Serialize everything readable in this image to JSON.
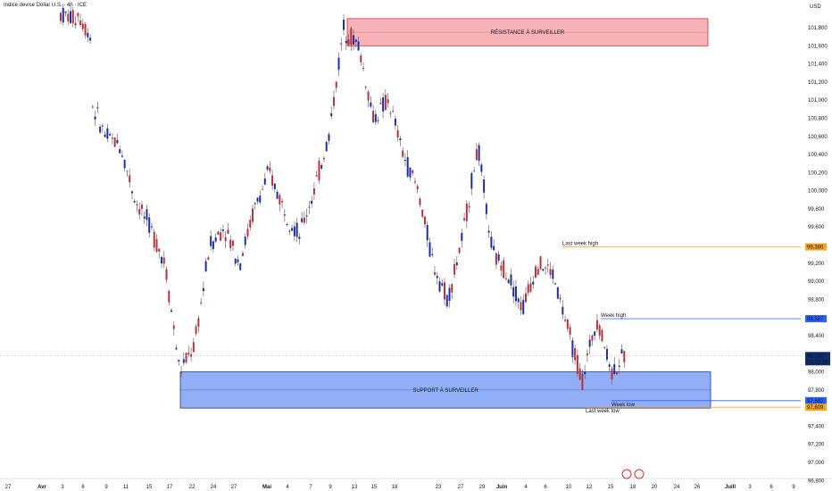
{
  "header": {
    "title": "Indice devise Dollar U.S. · 4h · ICE"
  },
  "chart_data": {
    "type": "candlestick",
    "title": "Indice devise Dollar U.S. · 4h · ICE",
    "currency_label": "USD",
    "ylim": [
      96800,
      102000
    ],
    "y_ticks": [
      {
        "v": 101800,
        "t": "101,800"
      },
      {
        "v": 101600,
        "t": "101,600"
      },
      {
        "v": 101400,
        "t": "101,400"
      },
      {
        "v": 101200,
        "t": "101,200"
      },
      {
        "v": 101000,
        "t": "101,000"
      },
      {
        "v": 100800,
        "t": "100,800"
      },
      {
        "v": 100600,
        "t": "100,600"
      },
      {
        "v": 100400,
        "t": "100,400"
      },
      {
        "v": 100200,
        "t": "100,200"
      },
      {
        "v": 100000,
        "t": "100,000"
      },
      {
        "v": 99800,
        "t": "99,800"
      },
      {
        "v": 99600,
        "t": "99,600"
      },
      {
        "v": 99200,
        "t": "99,200"
      },
      {
        "v": 99000,
        "t": "99,000"
      },
      {
        "v": 98800,
        "t": "98,800"
      },
      {
        "v": 98400,
        "t": "98,400"
      },
      {
        "v": 98000,
        "t": "98,000"
      },
      {
        "v": 97800,
        "t": "97,800"
      },
      {
        "v": 97400,
        "t": "97,400"
      },
      {
        "v": 97200,
        "t": "97,200"
      },
      {
        "v": 97000,
        "t": "97,000"
      },
      {
        "v": 96800,
        "t": "96,800"
      }
    ],
    "x_labels": [
      {
        "t": "27",
        "bold": false
      },
      {
        "t": "Avr",
        "bold": true
      },
      {
        "t": "3",
        "bold": false
      },
      {
        "t": "6",
        "bold": false
      },
      {
        "t": "9",
        "bold": false
      },
      {
        "t": "11",
        "bold": false
      },
      {
        "t": "15",
        "bold": false
      },
      {
        "t": "17",
        "bold": false
      },
      {
        "t": "22",
        "bold": false
      },
      {
        "t": "24",
        "bold": false
      },
      {
        "t": "27",
        "bold": false
      },
      {
        "t": "Mai",
        "bold": true
      },
      {
        "t": "4",
        "bold": false
      },
      {
        "t": "7",
        "bold": false
      },
      {
        "t": "9",
        "bold": false
      },
      {
        "t": "13",
        "bold": false
      },
      {
        "t": "15",
        "bold": false
      },
      {
        "t": "18",
        "bold": false
      },
      {
        "t": "23",
        "bold": false
      },
      {
        "t": "27",
        "bold": false
      },
      {
        "t": "29",
        "bold": false
      },
      {
        "t": "Juin",
        "bold": true
      },
      {
        "t": "4",
        "bold": false
      },
      {
        "t": "6",
        "bold": false
      },
      {
        "t": "10",
        "bold": false
      },
      {
        "t": "12",
        "bold": false
      },
      {
        "t": "15",
        "bold": false
      },
      {
        "t": "18",
        "bold": false
      },
      {
        "t": "20",
        "bold": false
      },
      {
        "t": "24",
        "bold": false
      },
      {
        "t": "26",
        "bold": false
      },
      {
        "t": "Juill",
        "bold": true
      },
      {
        "t": "3",
        "bold": false
      },
      {
        "t": "6",
        "bold": false
      },
      {
        "t": "9",
        "bold": false
      }
    ],
    "zones": [
      {
        "label": "RÉSISTANCE À SURVEILLER",
        "high": 101900,
        "low": 101600,
        "color": "#f7a6ac",
        "border": "#d32f2f"
      },
      {
        "label": "SUPPORT À SURVEILLER",
        "high": 98000,
        "low": 97600,
        "color": "#7fa0f2",
        "border": "#1e3a8a"
      }
    ],
    "levels": [
      {
        "label": "Last week high",
        "price": 99380,
        "color": "#f5a623",
        "price_text": "99,380"
      },
      {
        "label": "Week high",
        "price": 98587,
        "color": "#2962ff",
        "price_text": "98,587"
      },
      {
        "label": "Week low",
        "price": 97682,
        "color": "#2962ff",
        "price_text": "97,682"
      },
      {
        "label": "Last week low",
        "price": 97609,
        "color": "#f5a623",
        "price_text": "97,609"
      }
    ],
    "current_price": {
      "price": 98180,
      "price_text": "98,180",
      "countdown": "03:22:09",
      "color": "#0d2d6e"
    },
    "candle_colors": {
      "up": "#1c2ea6",
      "down": "#b7323f"
    },
    "candles_keypoints": [
      [
        101950,
        101900
      ],
      [
        102000,
        101700
      ],
      [
        101000,
        100600
      ],
      [
        100600,
        100500
      ],
      [
        100500,
        99900
      ],
      [
        99900,
        99600
      ],
      [
        99600,
        99200
      ],
      [
        99200,
        98000
      ],
      [
        98000,
        98300
      ],
      [
        98300,
        99400
      ],
      [
        99400,
        99600
      ],
      [
        99600,
        99200
      ],
      [
        99200,
        99800
      ],
      [
        99800,
        100200
      ],
      [
        100200,
        99800
      ],
      [
        99800,
        99500
      ],
      [
        99500,
        100000
      ],
      [
        100000,
        100600
      ],
      [
        100600,
        101800
      ],
      [
        101800,
        101600
      ],
      [
        101600,
        100800
      ],
      [
        100800,
        101000
      ],
      [
        101000,
        100400
      ],
      [
        100400,
        100000
      ],
      [
        100000,
        99200
      ],
      [
        99200,
        98800
      ],
      [
        98800,
        99500
      ],
      [
        99500,
        100500
      ],
      [
        100500,
        99300
      ],
      [
        99300,
        99100
      ],
      [
        99100,
        98700
      ],
      [
        98700,
        99200
      ],
      [
        99200,
        99100
      ],
      [
        99100,
        98500
      ],
      [
        98500,
        97900
      ],
      [
        97900,
        98600
      ],
      [
        98600,
        98000
      ],
      [
        98000,
        98200
      ]
    ]
  }
}
